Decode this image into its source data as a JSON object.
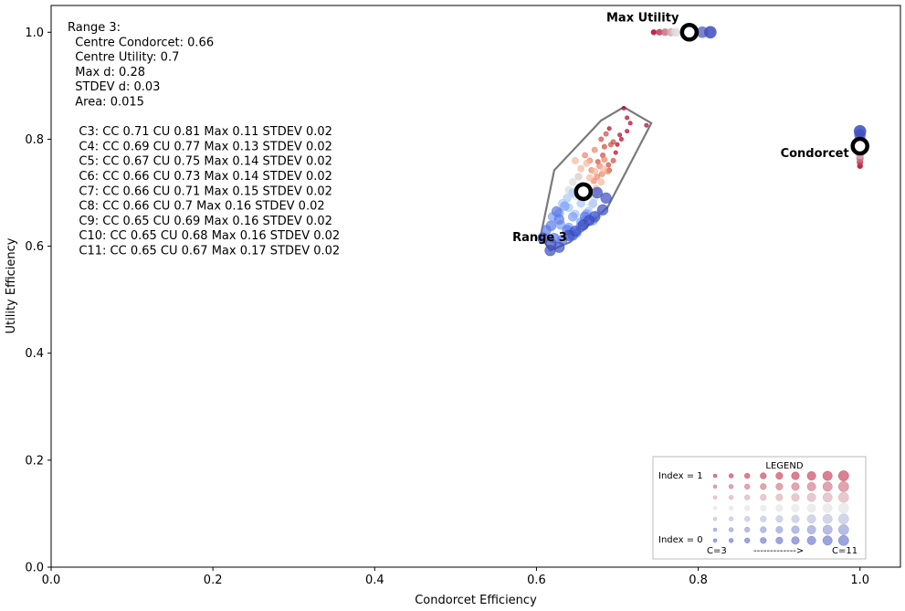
{
  "chart_data": {
    "type": "scatter",
    "xlabel": "Condorcet Efficiency",
    "ylabel": "Utility Efficiency",
    "xlim": [
      0,
      1.05
    ],
    "ylim": [
      0,
      1.05
    ],
    "xticks": [
      "0.0",
      "0.2",
      "0.4",
      "0.6",
      "0.8",
      "1.0"
    ],
    "yticks": [
      "0.0",
      "0.2",
      "0.4",
      "0.6",
      "0.8",
      "1.0"
    ],
    "info_lines": [
      "Range 3:",
      "  Centre Condorcet: 0.66",
      "  Centre Utility: 0.7",
      "  Max d: 0.28",
      "  STDEV d: 0.03",
      "  Area: 0.015",
      "",
      "   C3: CC 0.71 CU 0.81 Max 0.11 STDEV 0.02",
      "   C4: CC 0.69 CU 0.77 Max 0.13 STDEV 0.02",
      "   C5: CC 0.67 CU 0.75 Max 0.14 STDEV 0.02",
      "   C6: CC 0.66 CU 0.73 Max 0.14 STDEV 0.02",
      "   C7: CC 0.66 CU 0.71 Max 0.15 STDEV 0.02",
      "   C8: CC 0.66 CU 0.7 Max 0.16 STDEV 0.02",
      "   C9: CC 0.65 CU 0.69 Max 0.16 STDEV 0.02",
      "   C10: CC 0.65 CU 0.68 Max 0.16 STDEV 0.02",
      "   C11: CC 0.65 CU 0.67 Max 0.17 STDEV 0.02"
    ],
    "annotations": [
      {
        "text": "Max Utility",
        "x": 0.79,
        "y": 1.0
      },
      {
        "text": "Condorcet",
        "x": 1.0,
        "y": 0.787
      },
      {
        "text": "Range 3",
        "x": 0.658,
        "y": 0.702
      }
    ],
    "centres": [
      {
        "name": "Max Utility",
        "x": 0.789,
        "y": 1.0
      },
      {
        "name": "Condorcet",
        "x": 1.0,
        "y": 0.787
      },
      {
        "name": "Range 3",
        "x": 0.658,
        "y": 0.702
      }
    ],
    "hull": [
      [
        0.605,
        0.618
      ],
      [
        0.617,
        0.592
      ],
      [
        0.642,
        0.608
      ],
      [
        0.688,
        0.673
      ],
      [
        0.742,
        0.83
      ],
      [
        0.708,
        0.86
      ],
      [
        0.68,
        0.835
      ],
      [
        0.622,
        0.742
      ]
    ],
    "series": [
      {
        "c": 3,
        "index": 1.0,
        "color": "#b40426",
        "points": [
          [
            0.708,
            0.858
          ],
          [
            0.712,
            0.84
          ],
          [
            0.716,
            0.83
          ],
          [
            0.7,
            0.79
          ],
          [
            0.705,
            0.8
          ],
          [
            0.69,
            0.82
          ],
          [
            0.712,
            0.815
          ],
          [
            0.698,
            0.775
          ],
          [
            0.736,
            0.826
          ],
          [
            0.703,
            0.808
          ]
        ]
      },
      {
        "c": 4,
        "index": 0.875,
        "color": "#d24b40",
        "points": [
          [
            0.692,
            0.79
          ],
          [
            0.682,
            0.77
          ],
          [
            0.695,
            0.76
          ],
          [
            0.686,
            0.81
          ],
          [
            0.676,
            0.758
          ],
          [
            0.69,
            0.742
          ],
          [
            0.68,
            0.8
          ],
          [
            0.695,
            0.795
          ],
          [
            0.689,
            0.752
          ],
          [
            0.684,
            0.786
          ]
        ]
      },
      {
        "c": 5,
        "index": 0.75,
        "color": "#ee8468",
        "points": [
          [
            0.672,
            0.78
          ],
          [
            0.678,
            0.75
          ],
          [
            0.666,
            0.76
          ],
          [
            0.688,
            0.74
          ],
          [
            0.675,
            0.73
          ],
          [
            0.668,
            0.742
          ],
          [
            0.684,
            0.762
          ],
          [
            0.66,
            0.77
          ],
          [
            0.671,
            0.722
          ],
          [
            0.681,
            0.735
          ]
        ]
      },
      {
        "c": 6,
        "index": 0.625,
        "color": "#f7b89c",
        "points": [
          [
            0.662,
            0.755
          ],
          [
            0.672,
            0.74
          ],
          [
            0.655,
            0.745
          ],
          [
            0.666,
            0.728
          ],
          [
            0.68,
            0.72
          ],
          [
            0.652,
            0.73
          ],
          [
            0.674,
            0.708
          ],
          [
            0.648,
            0.76
          ],
          [
            0.662,
            0.712
          ],
          [
            0.683,
            0.744
          ]
        ]
      },
      {
        "c": 7,
        "index": 0.5,
        "color": "#dddcdc",
        "points": [
          [
            0.652,
            0.73
          ],
          [
            0.665,
            0.705
          ],
          [
            0.645,
            0.72
          ],
          [
            0.658,
            0.69
          ],
          [
            0.672,
            0.69
          ],
          [
            0.64,
            0.705
          ],
          [
            0.668,
            0.676
          ],
          [
            0.648,
            0.694
          ],
          [
            0.676,
            0.704
          ],
          [
            0.655,
            0.71
          ]
        ]
      },
      {
        "c": 8,
        "index": 0.375,
        "color": "#aac7fd",
        "points": [
          [
            0.645,
            0.7
          ],
          [
            0.655,
            0.68
          ],
          [
            0.638,
            0.69
          ],
          [
            0.664,
            0.665
          ],
          [
            0.632,
            0.68
          ],
          [
            0.648,
            0.66
          ],
          [
            0.67,
            0.68
          ],
          [
            0.66,
            0.65
          ],
          [
            0.64,
            0.672
          ],
          [
            0.676,
            0.66
          ]
        ]
      },
      {
        "c": 9,
        "index": 0.25,
        "color": "#7b9ff9",
        "points": [
          [
            0.635,
            0.675
          ],
          [
            0.645,
            0.655
          ],
          [
            0.628,
            0.662
          ],
          [
            0.655,
            0.645
          ],
          [
            0.62,
            0.655
          ],
          [
            0.64,
            0.635
          ],
          [
            0.662,
            0.66
          ],
          [
            0.63,
            0.64
          ],
          [
            0.67,
            0.648
          ],
          [
            0.65,
            0.625
          ]
        ]
      },
      {
        "c": 10,
        "index": 0.125,
        "color": "#5b7ae5",
        "points": [
          [
            0.628,
            0.65
          ],
          [
            0.638,
            0.63
          ],
          [
            0.618,
            0.638
          ],
          [
            0.645,
            0.62
          ],
          [
            0.612,
            0.63
          ],
          [
            0.632,
            0.612
          ],
          [
            0.655,
            0.636
          ],
          [
            0.622,
            0.615
          ],
          [
            0.66,
            0.655
          ],
          [
            0.625,
            0.665
          ]
        ]
      },
      {
        "c": 11,
        "index": 0.0,
        "color": "#3b4cc0",
        "points": [
          [
            0.618,
            0.605
          ],
          [
            0.628,
            0.598
          ],
          [
            0.608,
            0.615
          ],
          [
            0.64,
            0.62
          ],
          [
            0.617,
            0.592
          ],
          [
            0.648,
            0.628
          ],
          [
            0.658,
            0.64
          ],
          [
            0.665,
            0.648
          ],
          [
            0.672,
            0.655
          ],
          [
            0.682,
            0.668
          ],
          [
            0.686,
            0.69
          ],
          [
            0.675,
            0.7
          ]
        ]
      }
    ],
    "max_utility_points": [
      {
        "x": 0.745,
        "index": 1.0,
        "c": 3
      },
      {
        "x": 0.752,
        "index": 0.875,
        "c": 4
      },
      {
        "x": 0.759,
        "index": 0.75,
        "c": 5
      },
      {
        "x": 0.766,
        "index": 0.625,
        "c": 6
      },
      {
        "x": 0.772,
        "index": 0.5,
        "c": 7
      },
      {
        "x": 0.784,
        "index": 0.375,
        "c": 8
      },
      {
        "x": 0.795,
        "index": 0.25,
        "c": 9
      },
      {
        "x": 0.805,
        "index": 0.125,
        "c": 10
      },
      {
        "x": 0.815,
        "index": 0.0,
        "c": 11
      }
    ],
    "condorcet_points": [
      {
        "y": 0.75,
        "index": 1.0,
        "c": 3
      },
      {
        "y": 0.757,
        "index": 0.875,
        "c": 4
      },
      {
        "y": 0.764,
        "index": 0.75,
        "c": 5
      },
      {
        "y": 0.771,
        "index": 0.625,
        "c": 6
      },
      {
        "y": 0.779,
        "index": 0.5,
        "c": 7
      },
      {
        "y": 0.79,
        "index": 0.375,
        "c": 8
      },
      {
        "y": 0.8,
        "index": 0.25,
        "c": 9
      },
      {
        "y": 0.808,
        "index": 0.125,
        "c": 10
      },
      {
        "y": 0.815,
        "index": 0.0,
        "c": 11
      }
    ],
    "legend": {
      "title": "LEGEND",
      "top_label": "Index = 1",
      "bottom_label": "Index = 0",
      "left_label": "C=3",
      "arrow_label": "------------->",
      "right_label": "C=11",
      "placement": "lower-right"
    }
  }
}
